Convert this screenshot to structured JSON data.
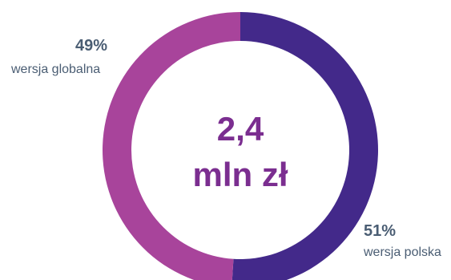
{
  "chart_data": {
    "type": "pie",
    "donut": true,
    "center_text": [
      "2,4",
      "mln zł"
    ],
    "slices": [
      {
        "label": "wersja polska",
        "value": 51,
        "display": "51%",
        "color": "#43298A"
      },
      {
        "label": "wersja globalna",
        "value": 49,
        "display": "49%",
        "color": "#A8449B"
      }
    ],
    "legend": "none"
  },
  "colors": {
    "center_text": "#7B2E90",
    "label_text": "#4A5D73",
    "background": "#FFFFFF"
  }
}
